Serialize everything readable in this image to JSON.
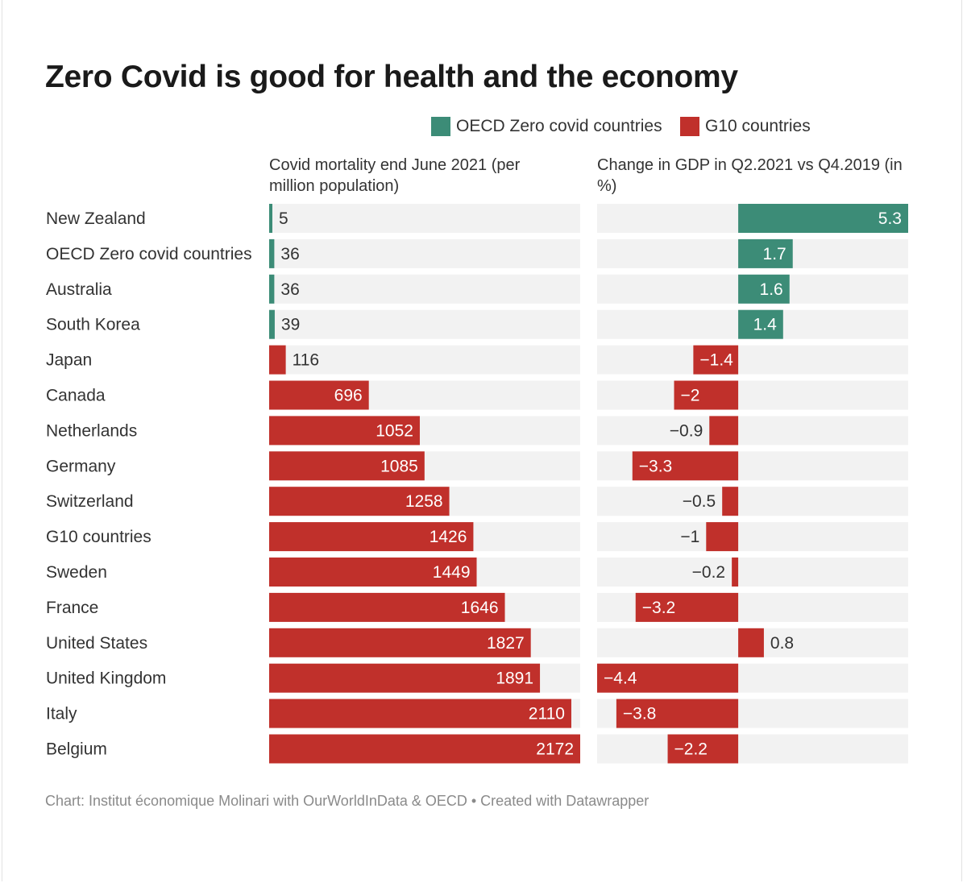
{
  "title": "Zero Covid is good for health and the economy",
  "legend": [
    {
      "label": "OECD Zero covid countries",
      "color": "#3c8c77"
    },
    {
      "label": "G10 countries",
      "color": "#c0302b"
    }
  ],
  "source": "Chart: Institut économique Molinari with OurWorldInData & OECD • Created with Datawrapper",
  "colors": {
    "zero": "#3c8c77",
    "g10": "#c0302b",
    "track": "#f2f2f2"
  },
  "chart_data": {
    "type": "bar",
    "categories": [
      "New Zealand",
      "OECD Zero covid countries",
      "Australia",
      "South Korea",
      "Japan",
      "Canada",
      "Netherlands",
      "Germany",
      "Switzerland",
      "G10 countries",
      "Sweden",
      "France",
      "United States",
      "United Kingdom",
      "Italy",
      "Belgium"
    ],
    "groups": [
      "zero",
      "zero",
      "zero",
      "zero",
      "g10",
      "g10",
      "g10",
      "g10",
      "g10",
      "g10",
      "g10",
      "g10",
      "g10",
      "g10",
      "g10",
      "g10"
    ],
    "series": [
      {
        "title": "Covid mortality end June 2021 (per million population)",
        "values": [
          5,
          36,
          36,
          39,
          116,
          696,
          1052,
          1085,
          1258,
          1426,
          1449,
          1646,
          1827,
          1891,
          2110,
          2172
        ],
        "labels": [
          "5",
          "36",
          "36",
          "39",
          "116",
          "696",
          "1052",
          "1085",
          "1258",
          "1426",
          "1449",
          "1646",
          "1827",
          "1891",
          "2110",
          "2172"
        ],
        "range": [
          0,
          2172
        ]
      },
      {
        "title": "Change in GDP in Q2.2021 vs Q4.2019 (in %)",
        "values": [
          5.3,
          1.7,
          1.6,
          1.4,
          -1.4,
          -2,
          -0.9,
          -3.3,
          -0.5,
          -1,
          -0.2,
          -3.2,
          0.8,
          -4.4,
          -3.8,
          -2.2
        ],
        "labels": [
          "5.3",
          "1.7",
          "1.6",
          "1.4",
          "−1.4",
          "−2",
          "−0.9",
          "−3.3",
          "−0.5",
          "−1",
          "−0.2",
          "−3.2",
          "0.8",
          "−4.4",
          "−3.8",
          "−2.2"
        ],
        "range": [
          -4.4,
          5.3
        ]
      }
    ]
  }
}
